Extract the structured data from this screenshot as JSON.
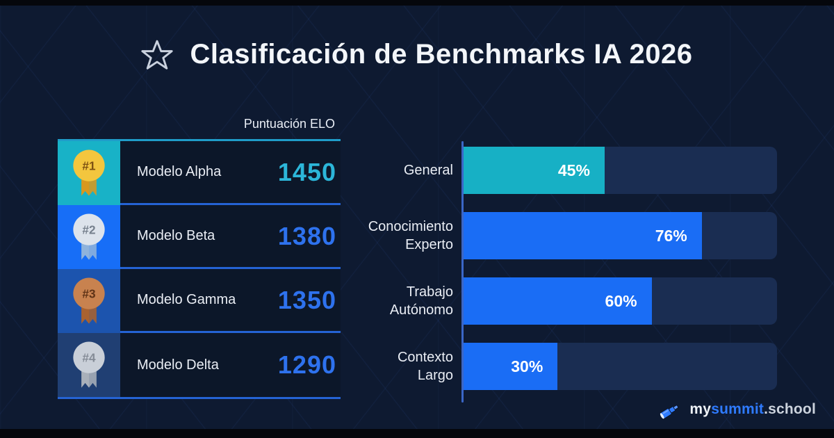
{
  "title": {
    "icon": "star-outline-icon",
    "text": "Clasificación de Benchmarks IA 2026"
  },
  "ranking": {
    "header": "Puntuación ELO",
    "rows": [
      {
        "rank": "#1",
        "model": "Modelo Alpha",
        "score": "1450",
        "medal": "gold",
        "accent_color": "#18b2c7",
        "score_color": "#2cb6d9"
      },
      {
        "rank": "#2",
        "model": "Modelo Beta",
        "score": "1380",
        "medal": "silver",
        "accent_color": "#176ef7",
        "score_color": "#2e72ee"
      },
      {
        "rank": "#3",
        "model": "Modelo Gamma",
        "score": "1350",
        "medal": "bronze",
        "accent_color": "#1c54ae",
        "score_color": "#2e72ee"
      },
      {
        "rank": "#4",
        "model": "Modelo Delta",
        "score": "1290",
        "medal": "gray",
        "accent_color": "#203f73",
        "score_color": "#2e72ee"
      }
    ]
  },
  "chart_data": {
    "type": "bar",
    "orientation": "horizontal",
    "title": "",
    "categories": [
      "General",
      "Conocimiento Experto",
      "Trabajo Autónomo",
      "Contexto Largo"
    ],
    "values": [
      45,
      76,
      60,
      30
    ],
    "value_labels": [
      "45%",
      "76%",
      "60%",
      "30%"
    ],
    "bar_colors": [
      "#17b0c5",
      "#1a6df5",
      "#1a6df5",
      "#1a6df5"
    ],
    "track_color": "#1a2d52",
    "xlim": [
      0,
      100
    ],
    "grid": false,
    "legend": false,
    "value_label_position": "inside-end"
  },
  "branding": {
    "icon": "telescope-icon",
    "prefix": "my",
    "highlight": "summit",
    "suffix": ".school",
    "highlight_color": "#2f7bff"
  },
  "theme": {
    "background": "#0e1a31",
    "table_top_border": "#1f9dc9",
    "divider_blue": "#2563d4",
    "axis_color": "#3b66c6"
  }
}
